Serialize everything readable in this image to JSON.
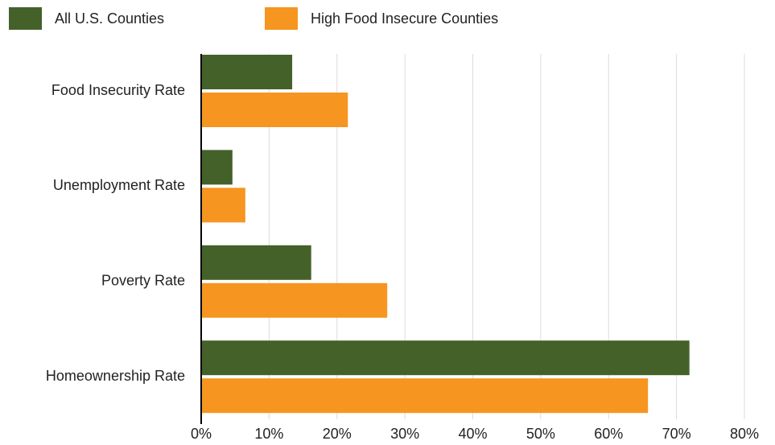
{
  "chart_data": {
    "type": "bar",
    "orientation": "horizontal",
    "categories": [
      "Food Insecurity Rate",
      "Unemployment Rate",
      "Poverty Rate",
      "Homeownership Rate"
    ],
    "series": [
      {
        "name": "All U.S. Counties",
        "color": "#44612a",
        "values": [
          13.4,
          4.6,
          16.2,
          71.9
        ]
      },
      {
        "name": "High Food Insecure Counties",
        "color": "#f6951f",
        "values": [
          21.6,
          6.5,
          27.4,
          65.8
        ]
      }
    ],
    "xlim": [
      0,
      80
    ],
    "x_ticks": [
      "0%",
      "10%",
      "20%",
      "30%",
      "40%",
      "50%",
      "60%",
      "70%",
      "80%"
    ],
    "x_tick_values": [
      0,
      10,
      20,
      30,
      40,
      50,
      60,
      70,
      80
    ],
    "grid": "vertical",
    "legend_position": "top-left",
    "gridline_color": "#dcdcdc",
    "axis_color": "#000000"
  }
}
